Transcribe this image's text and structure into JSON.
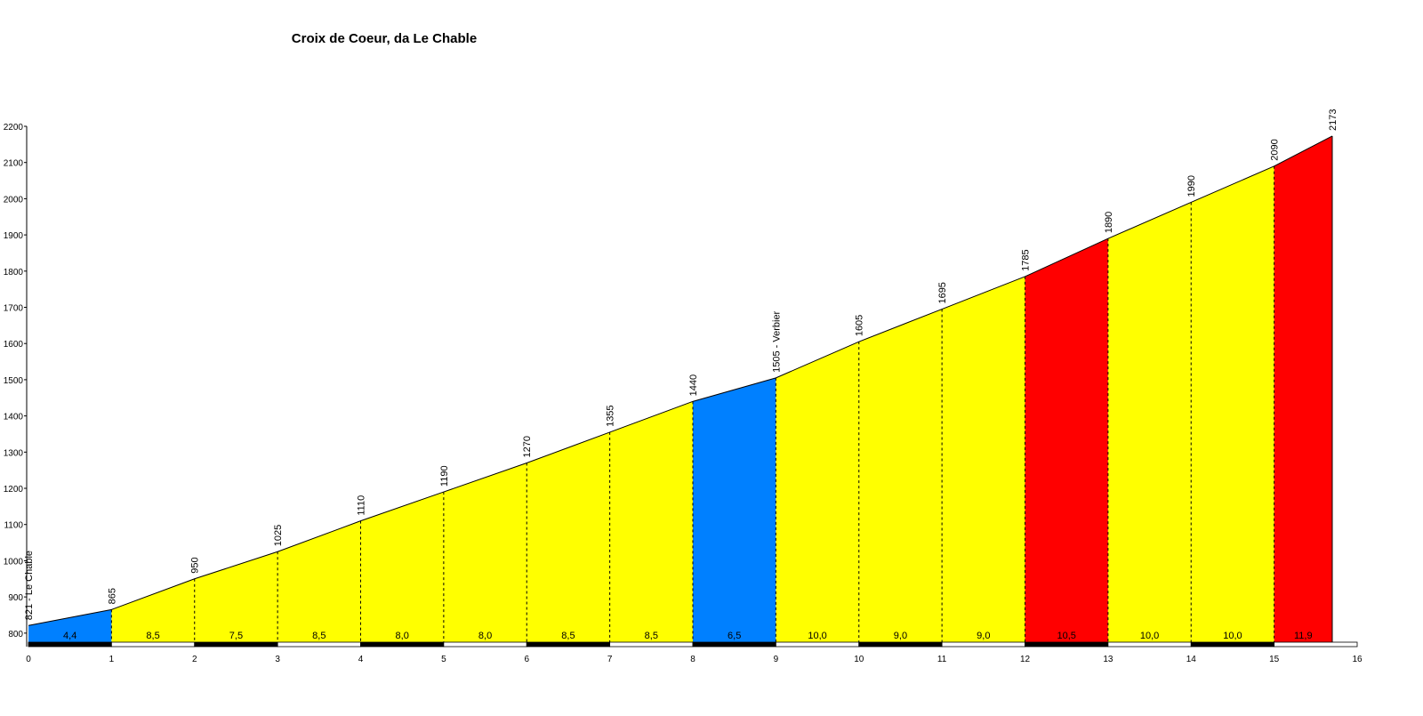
{
  "chart_data": {
    "type": "profile",
    "title": "Croix de Coeur, da Le Chable",
    "x": [
      0,
      1,
      2,
      3,
      4,
      5,
      6,
      7,
      8,
      9,
      10,
      11,
      12,
      13,
      14,
      15,
      15.7
    ],
    "values": [
      821,
      865,
      950,
      1025,
      1110,
      1190,
      1270,
      1355,
      1440,
      1505,
      1605,
      1695,
      1785,
      1890,
      1990,
      2090,
      2173
    ],
    "value_labels": [
      "821 - Le Chable",
      "865",
      "950",
      "1025",
      "1110",
      "1190",
      "1270",
      "1355",
      "1440",
      "1505 - Verbier",
      "1605",
      "1695",
      "1785",
      "1890",
      "1990",
      "2090",
      "2173"
    ],
    "segments": {
      "values": [
        4.4,
        8.5,
        7.5,
        8.5,
        8.0,
        8.0,
        8.5,
        8.5,
        6.5,
        10.0,
        9.0,
        9.0,
        10.5,
        10.0,
        10.0,
        11.9
      ],
      "value_labels": [
        "4,4",
        "8,5",
        "7,5",
        "8,5",
        "8,0",
        "8,0",
        "8,5",
        "8,5",
        "6,5",
        "10,0",
        "9,0",
        "9,0",
        "10,5",
        "10,0",
        "10,0",
        "11,9"
      ],
      "colors": [
        "#0080ff",
        "#ffff00",
        "#ffff00",
        "#ffff00",
        "#ffff00",
        "#ffff00",
        "#ffff00",
        "#ffff00",
        "#0080ff",
        "#ffff00",
        "#ffff00",
        "#ffff00",
        "#ff0000",
        "#ffff00",
        "#ffff00",
        "#ff0000"
      ]
    },
    "xlim": [
      0,
      16
    ],
    "xticks": [
      0,
      1,
      2,
      3,
      4,
      5,
      6,
      7,
      8,
      9,
      10,
      11,
      12,
      13,
      14,
      15,
      16
    ],
    "ylim": [
      775,
      2200
    ],
    "yticks": [
      800,
      900,
      1000,
      1100,
      1200,
      1300,
      1400,
      1500,
      1600,
      1700,
      1800,
      1900,
      2000,
      2100,
      2200
    ]
  }
}
